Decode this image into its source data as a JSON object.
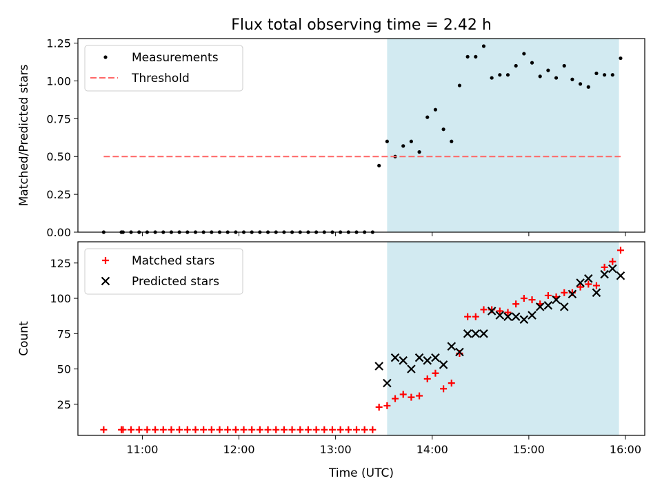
{
  "figure": {
    "title": "Flux total observing time = 2.42 h",
    "xlabel": "Time (UTC)",
    "x_tick_labels": [
      "11:00",
      "12:00",
      "13:00",
      "14:00",
      "15:00",
      "16:00"
    ]
  },
  "colors": {
    "shade": "#add8e6",
    "threshold": "#ff6666",
    "matched": "#ff0000",
    "predicted": "#000000",
    "measurement": "#000000"
  },
  "chart_data": [
    {
      "type": "scatter",
      "ylabel": "Matched/Predicted stars",
      "ylim": [
        0,
        1.28
      ],
      "y_ticks": [
        0,
        0.25,
        0.5,
        0.75,
        1.0,
        1.25
      ],
      "y_tick_labels": [
        "0.00",
        "0.25",
        "0.50",
        "0.75",
        "1.00",
        "1.25"
      ],
      "xlim": [
        "10:20",
        "16:12"
      ],
      "legend_position": "top-left",
      "shaded_region": {
        "x": [
          "13:32",
          "15:56"
        ]
      },
      "series": [
        {
          "name": "Measurements",
          "marker": "dot",
          "x": [
            "10:36",
            "10:47",
            "10:48",
            "10:53",
            "10:58",
            "11:03",
            "11:08",
            "11:13",
            "11:18",
            "11:23",
            "11:28",
            "11:33",
            "11:38",
            "11:43",
            "11:48",
            "11:53",
            "11:58",
            "12:03",
            "12:08",
            "12:13",
            "12:18",
            "12:23",
            "12:28",
            "12:33",
            "12:38",
            "12:43",
            "12:48",
            "12:53",
            "12:58",
            "13:03",
            "13:08",
            "13:13",
            "13:18",
            "13:23",
            "13:27",
            "13:32",
            "13:37",
            "13:42",
            "13:47",
            "13:52",
            "13:57",
            "14:02",
            "14:07",
            "14:12",
            "14:17",
            "14:22",
            "14:27",
            "14:32",
            "14:37",
            "14:42",
            "14:47",
            "14:52",
            "14:57",
            "15:02",
            "15:07",
            "15:12",
            "15:17",
            "15:22",
            "15:27",
            "15:32",
            "15:37",
            "15:42",
            "15:47",
            "15:52",
            "15:57"
          ],
          "y": [
            0,
            0,
            0,
            0,
            0,
            0,
            0,
            0,
            0,
            0,
            0,
            0,
            0,
            0,
            0,
            0,
            0,
            0,
            0,
            0,
            0,
            0,
            0,
            0,
            0,
            0,
            0,
            0,
            0,
            0,
            0,
            0,
            0,
            0,
            0.44,
            0.6,
            0.5,
            0.57,
            0.6,
            0.53,
            0.76,
            0.81,
            0.68,
            0.6,
            0.97,
            1.16,
            1.16,
            1.23,
            1.02,
            1.04,
            1.04,
            1.1,
            1.18,
            1.12,
            1.03,
            1.07,
            1.02,
            1.1,
            1.01,
            0.98,
            0.96,
            1.05,
            1.04,
            1.04,
            1.15
          ]
        },
        {
          "name": "Threshold",
          "style": "dashed",
          "x": [
            "10:36",
            "15:57"
          ],
          "y": [
            0.5,
            0.5
          ]
        }
      ]
    },
    {
      "type": "scatter",
      "ylabel": "Count",
      "ylim": [
        3,
        140
      ],
      "y_ticks": [
        25,
        50,
        75,
        100,
        125
      ],
      "y_tick_labels": [
        "25",
        "50",
        "75",
        "100",
        "125"
      ],
      "xlim": [
        "10:20",
        "16:12"
      ],
      "legend_position": "top-left",
      "shaded_region": {
        "x": [
          "13:32",
          "15:56"
        ]
      },
      "series": [
        {
          "name": "Matched stars",
          "marker": "plus",
          "x": [
            "10:36",
            "10:47",
            "10:48",
            "10:53",
            "10:58",
            "11:03",
            "11:08",
            "11:13",
            "11:18",
            "11:23",
            "11:28",
            "11:33",
            "11:38",
            "11:43",
            "11:48",
            "11:53",
            "11:58",
            "12:03",
            "12:08",
            "12:13",
            "12:18",
            "12:23",
            "12:28",
            "12:33",
            "12:38",
            "12:43",
            "12:48",
            "12:53",
            "12:58",
            "13:03",
            "13:08",
            "13:13",
            "13:18",
            "13:23",
            "13:27",
            "13:32",
            "13:37",
            "13:42",
            "13:47",
            "13:52",
            "13:57",
            "14:02",
            "14:07",
            "14:12",
            "14:17",
            "14:22",
            "14:27",
            "14:32",
            "14:37",
            "14:42",
            "14:47",
            "14:52",
            "14:57",
            "15:02",
            "15:07",
            "15:12",
            "15:17",
            "15:22",
            "15:27",
            "15:32",
            "15:37",
            "15:42",
            "15:47",
            "15:52",
            "15:57"
          ],
          "y": [
            7,
            7,
            7,
            7,
            7,
            7,
            7,
            7,
            7,
            7,
            7,
            7,
            7,
            7,
            7,
            7,
            7,
            7,
            7,
            7,
            7,
            7,
            7,
            7,
            7,
            7,
            7,
            7,
            7,
            7,
            7,
            7,
            7,
            7,
            23,
            24,
            29,
            32,
            30,
            31,
            43,
            47,
            36,
            40,
            61,
            87,
            87,
            92,
            92,
            91,
            90,
            96,
            100,
            99,
            96,
            102,
            101,
            104,
            104,
            108,
            110,
            109,
            122,
            126,
            134
          ]
        },
        {
          "name": "Predicted stars",
          "marker": "x",
          "x": [
            "13:27",
            "13:32",
            "13:37",
            "13:42",
            "13:47",
            "13:52",
            "13:57",
            "14:02",
            "14:07",
            "14:12",
            "14:17",
            "14:22",
            "14:27",
            "14:32",
            "14:37",
            "14:42",
            "14:47",
            "14:52",
            "14:57",
            "15:02",
            "15:07",
            "15:12",
            "15:17",
            "15:22",
            "15:27",
            "15:32",
            "15:37",
            "15:42",
            "15:47",
            "15:52",
            "15:57"
          ],
          "y": [
            52,
            40,
            58,
            56,
            50,
            58,
            56,
            58,
            53,
            66,
            62,
            75,
            75,
            75,
            91,
            88,
            87,
            87,
            85,
            88,
            94,
            95,
            99,
            94,
            103,
            111,
            114,
            104,
            117,
            121,
            116
          ]
        }
      ]
    }
  ]
}
